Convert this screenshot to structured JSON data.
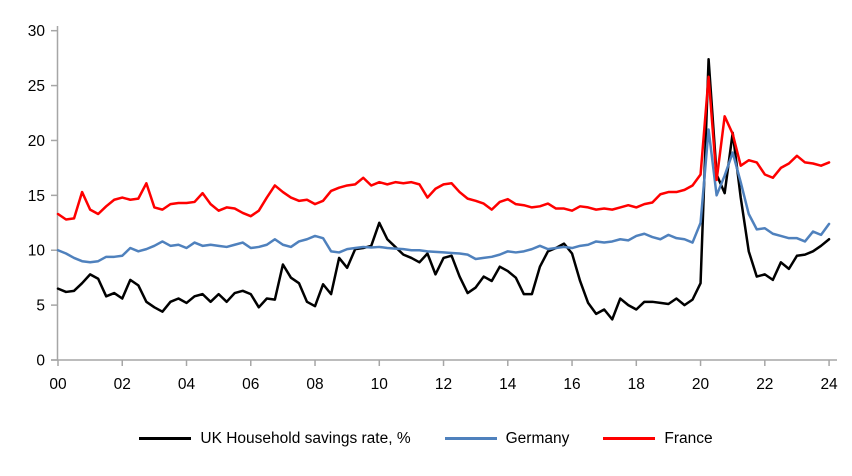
{
  "chart_data": {
    "type": "line",
    "title": "",
    "xlabel": "",
    "ylabel": "",
    "frequency": "quarterly",
    "x_start_year": 2000,
    "x_end_year": 2024,
    "ylim": [
      0,
      30
    ],
    "y_ticks": [
      0,
      5,
      10,
      15,
      20,
      25,
      30
    ],
    "x_tick_labels": [
      "00",
      "02",
      "04",
      "06",
      "08",
      "10",
      "12",
      "14",
      "16",
      "18",
      "20",
      "22",
      "24"
    ],
    "grid": false,
    "legend_position": "bottom",
    "axis_color": "#a6a6a6",
    "label_color": "#000000",
    "series": [
      {
        "id": "uk",
        "name": "UK Household savings rate, %",
        "color": "#000000",
        "values": [
          6.5,
          6.2,
          6.3,
          7.0,
          7.8,
          7.4,
          5.8,
          6.1,
          5.6,
          7.3,
          6.8,
          5.3,
          4.8,
          4.4,
          5.3,
          5.6,
          5.2,
          5.8,
          6.0,
          5.3,
          6.0,
          5.3,
          6.1,
          6.3,
          6.0,
          4.8,
          5.6,
          5.5,
          8.7,
          7.5,
          7.0,
          5.3,
          4.9,
          6.9,
          6.0,
          9.3,
          8.4,
          10.1,
          10.2,
          10.4,
          12.5,
          11.0,
          10.3,
          9.6,
          9.3,
          8.9,
          9.7,
          7.8,
          9.3,
          9.5,
          7.6,
          6.1,
          6.6,
          7.6,
          7.2,
          8.5,
          8.1,
          7.5,
          6.0,
          6.0,
          8.5,
          9.9,
          10.2,
          10.6,
          9.7,
          7.2,
          5.2,
          4.2,
          4.6,
          3.7,
          5.6,
          5.0,
          4.6,
          5.3,
          5.3,
          5.2,
          5.1,
          5.6,
          5.0,
          5.5,
          7.0,
          27.4,
          16.9,
          15.2,
          20.7,
          14.8,
          9.9,
          7.6,
          7.8,
          7.3,
          8.9,
          8.3,
          9.5,
          9.6,
          9.9,
          10.4,
          11.0
        ]
      },
      {
        "id": "germany",
        "name": "Germany",
        "color": "#4f81bd",
        "values": [
          10.0,
          9.7,
          9.3,
          9.0,
          8.9,
          9.0,
          9.4,
          9.4,
          9.5,
          10.2,
          9.9,
          10.1,
          10.4,
          10.8,
          10.4,
          10.5,
          10.2,
          10.7,
          10.4,
          10.5,
          10.4,
          10.3,
          10.5,
          10.7,
          10.2,
          10.3,
          10.5,
          11.0,
          10.5,
          10.3,
          10.8,
          11.0,
          11.3,
          11.1,
          9.9,
          9.8,
          10.1,
          10.2,
          10.3,
          10.25,
          10.3,
          10.2,
          10.15,
          10.1,
          10.0,
          10.0,
          9.9,
          9.85,
          9.8,
          9.75,
          9.7,
          9.6,
          9.2,
          9.3,
          9.4,
          9.6,
          9.9,
          9.8,
          9.9,
          10.1,
          10.4,
          10.1,
          10.2,
          10.3,
          10.2,
          10.4,
          10.5,
          10.8,
          10.7,
          10.8,
          11.0,
          10.9,
          11.3,
          11.5,
          11.2,
          11.0,
          11.4,
          11.1,
          11.0,
          10.7,
          12.5,
          21.0,
          15.0,
          16.8,
          18.9,
          16.2,
          13.3,
          11.9,
          12.0,
          11.5,
          11.3,
          11.1,
          11.1,
          10.8,
          11.7,
          11.4,
          12.4
        ]
      },
      {
        "id": "france",
        "name": "France",
        "color": "#ff0000",
        "values": [
          13.3,
          12.8,
          12.9,
          15.3,
          13.7,
          13.3,
          14.0,
          14.6,
          14.8,
          14.6,
          14.7,
          16.1,
          13.9,
          13.7,
          14.2,
          14.3,
          14.3,
          14.4,
          15.2,
          14.2,
          13.6,
          13.9,
          13.8,
          13.4,
          13.1,
          13.6,
          14.8,
          15.9,
          15.3,
          14.8,
          14.5,
          14.6,
          14.2,
          14.5,
          15.4,
          15.7,
          15.9,
          16.0,
          16.6,
          15.9,
          16.2,
          16.0,
          16.2,
          16.1,
          16.2,
          16.0,
          14.8,
          15.6,
          16.0,
          16.1,
          15.3,
          14.7,
          14.5,
          14.25,
          13.7,
          14.4,
          14.65,
          14.2,
          14.1,
          13.9,
          14.0,
          14.25,
          13.8,
          13.8,
          13.6,
          14.0,
          13.9,
          13.7,
          13.8,
          13.7,
          13.9,
          14.1,
          13.9,
          14.2,
          14.35,
          15.1,
          15.3,
          15.3,
          15.5,
          15.9,
          16.9,
          25.8,
          16.4,
          22.2,
          20.6,
          17.7,
          18.2,
          18.0,
          16.9,
          16.6,
          17.5,
          17.9,
          18.6,
          18.0,
          17.9,
          17.7,
          18.0
        ]
      }
    ]
  },
  "legend": {
    "uk_label": "UK Household savings rate, %",
    "germany_label": "Germany",
    "france_label": "France"
  }
}
